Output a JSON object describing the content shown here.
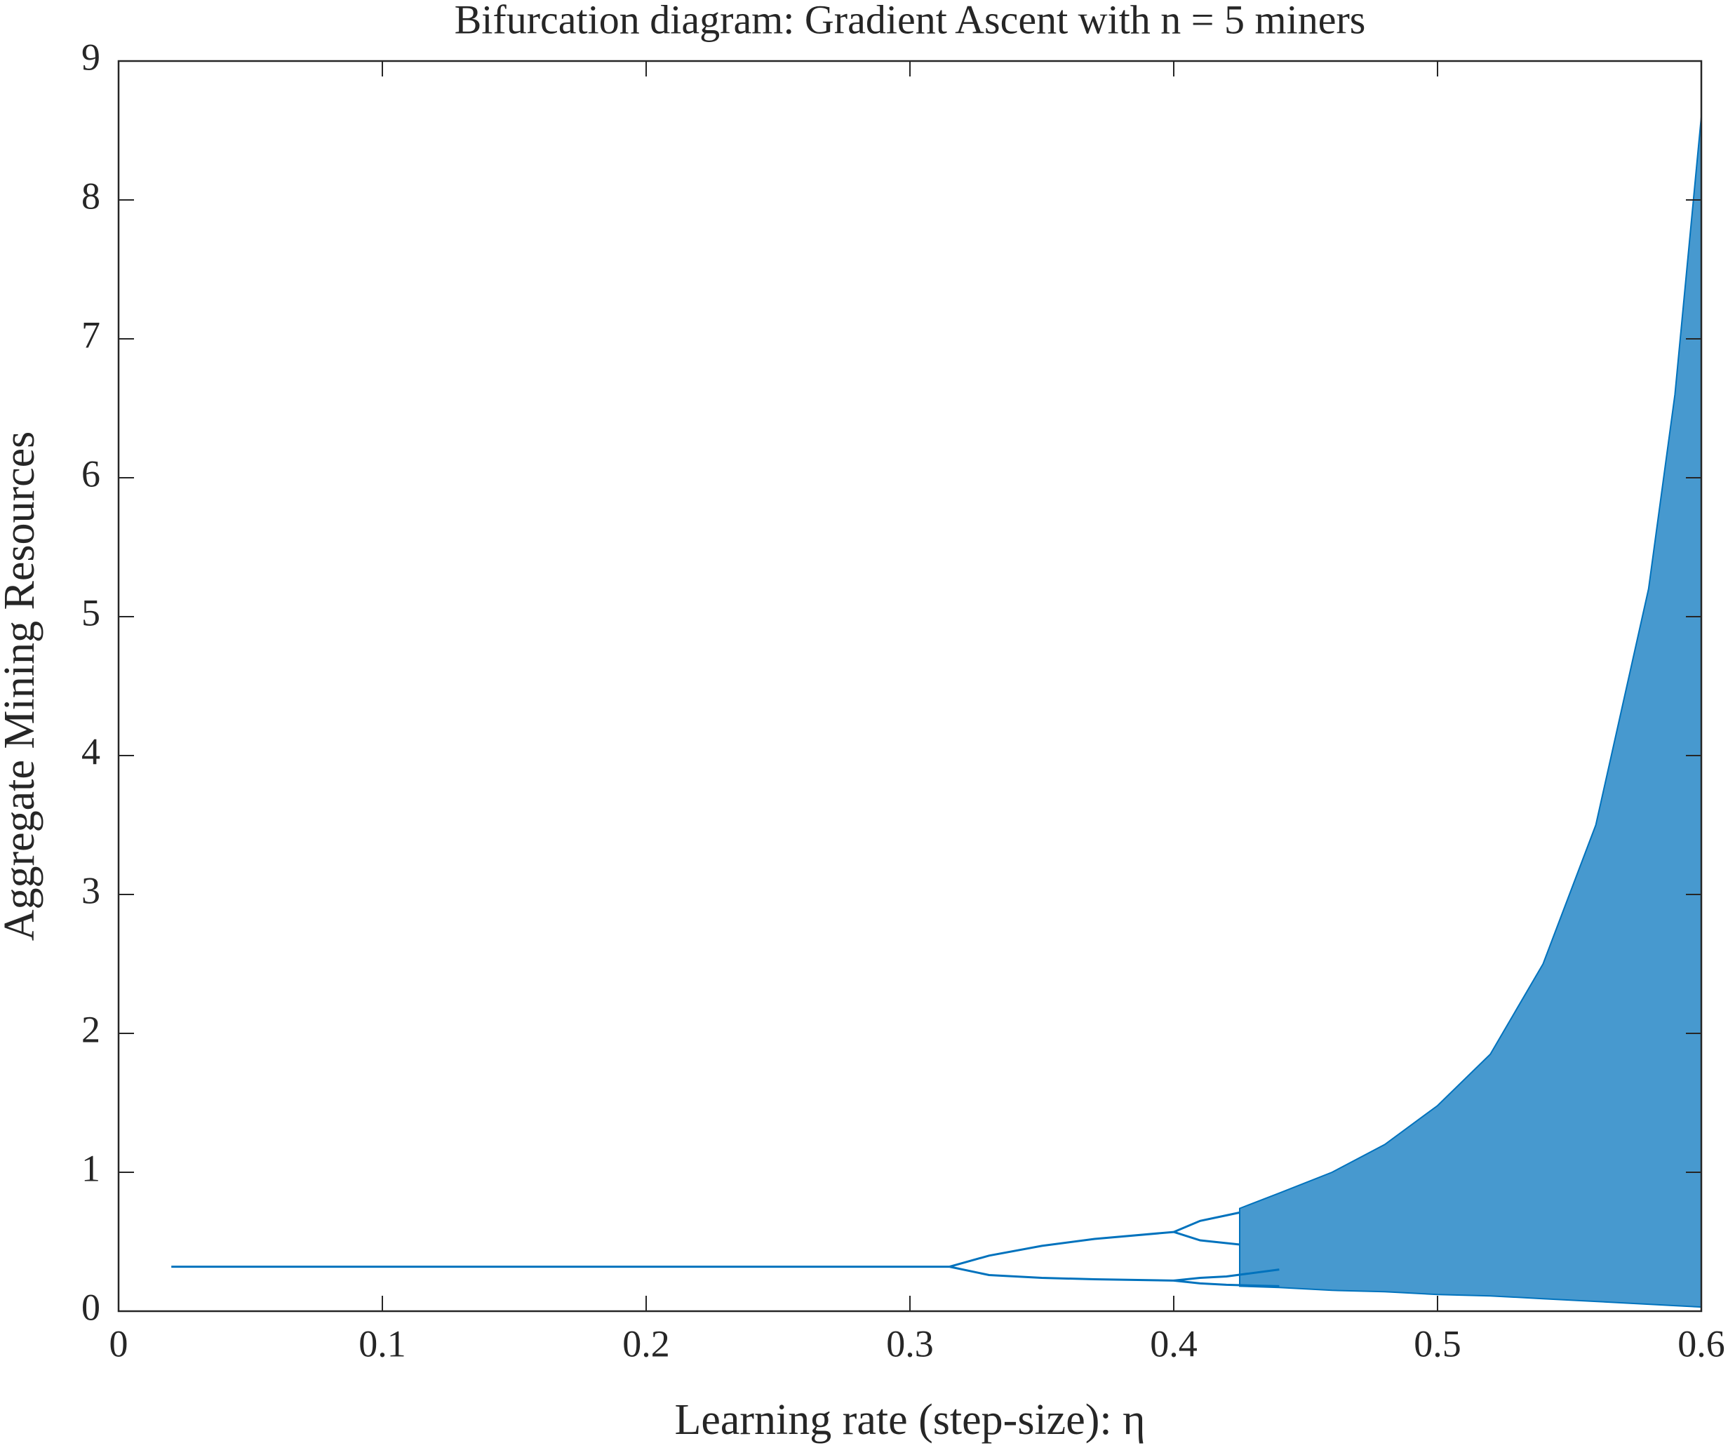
{
  "chart_data": {
    "type": "bifurcation",
    "title": "Bifurcation diagram: Gradient Ascent with n = 5 miners",
    "x_label": "Learning rate (step-size): η",
    "y_label": "Aggregate Mining Resources",
    "xlim": [
      0,
      0.6
    ],
    "xticks": [
      0,
      0.1,
      0.2,
      0.3,
      0.4,
      0.5,
      0.6
    ],
    "ylim": [
      0,
      9
    ],
    "yticks": [
      0,
      1,
      2,
      3,
      4,
      5,
      6,
      7,
      8,
      9
    ],
    "color": "#0072bd",
    "branches": [
      {
        "x": [
          0.02,
          0.315
        ],
        "values": [
          0.32,
          0.32
        ]
      },
      {
        "x": [
          0.315,
          0.33,
          0.35,
          0.37,
          0.4
        ],
        "values": [
          0.32,
          0.4,
          0.47,
          0.52,
          0.57
        ]
      },
      {
        "x": [
          0.315,
          0.33,
          0.35,
          0.37,
          0.4
        ],
        "values": [
          0.32,
          0.26,
          0.24,
          0.23,
          0.22
        ]
      },
      {
        "x": [
          0.4,
          0.41,
          0.42,
          0.425
        ],
        "values": [
          0.57,
          0.65,
          0.69,
          0.71
        ]
      },
      {
        "x": [
          0.4,
          0.41,
          0.42,
          0.425
        ],
        "values": [
          0.57,
          0.51,
          0.49,
          0.48
        ]
      },
      {
        "x": [
          0.4,
          0.41,
          0.42,
          0.44
        ],
        "values": [
          0.22,
          0.24,
          0.25,
          0.3
        ]
      },
      {
        "x": [
          0.4,
          0.41,
          0.42,
          0.44
        ],
        "values": [
          0.22,
          0.2,
          0.19,
          0.18
        ]
      }
    ],
    "chaos": {
      "x": [
        0.425,
        0.44,
        0.46,
        0.48,
        0.5,
        0.52,
        0.54,
        0.56,
        0.58,
        0.59,
        0.6
      ],
      "upper": [
        0.74,
        0.85,
        1.0,
        1.2,
        1.48,
        1.85,
        2.5,
        3.5,
        5.2,
        6.6,
        8.6
      ],
      "lower": [
        0.18,
        0.17,
        0.15,
        0.14,
        0.12,
        0.11,
        0.09,
        0.07,
        0.05,
        0.04,
        0.03
      ]
    }
  }
}
